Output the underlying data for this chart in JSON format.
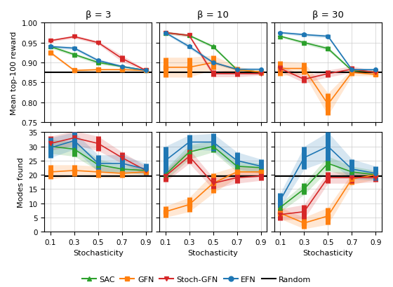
{
  "x": [
    0.1,
    0.3,
    0.5,
    0.7,
    0.9
  ],
  "beta_labels": [
    "β = 3",
    "β = 10",
    "β = 30"
  ],
  "reward": {
    "SAC": [
      [
        0.94,
        0.92,
        0.9,
        0.89,
        0.88
      ],
      [
        0.975,
        0.968,
        0.94,
        0.882,
        0.876
      ],
      [
        0.966,
        0.95,
        0.935,
        0.88,
        0.876
      ]
    ],
    "GFN": [
      [
        0.925,
        0.88,
        0.882,
        0.882,
        0.88
      ],
      [
        0.888,
        0.888,
        0.9,
        0.882,
        0.876
      ],
      [
        0.885,
        0.885,
        0.795,
        0.875,
        0.87
      ]
    ],
    "StochGFN": [
      [
        0.955,
        0.965,
        0.95,
        0.91,
        0.88
      ],
      [
        0.975,
        0.968,
        0.872,
        0.872,
        0.872
      ],
      [
        0.885,
        0.858,
        0.872,
        0.883,
        0.875
      ]
    ],
    "EFN": [
      [
        0.94,
        0.936,
        0.905,
        0.89,
        0.88
      ],
      [
        0.975,
        0.94,
        0.9,
        0.883,
        0.883
      ],
      [
        0.975,
        0.97,
        0.966,
        0.882,
        0.882
      ]
    ],
    "Random": 0.875
  },
  "reward_err": {
    "SAC": [
      [
        0.004,
        0.004,
        0.004,
        0.003,
        0.002
      ],
      [
        0.003,
        0.003,
        0.004,
        0.003,
        0.002
      ],
      [
        0.003,
        0.004,
        0.005,
        0.003,
        0.002
      ]
    ],
    "GFN": [
      [
        0.004,
        0.003,
        0.003,
        0.003,
        0.002
      ],
      [
        0.025,
        0.025,
        0.018,
        0.008,
        0.004
      ],
      [
        0.018,
        0.015,
        0.028,
        0.008,
        0.004
      ]
    ],
    "StochGFN": [
      [
        0.003,
        0.004,
        0.004,
        0.008,
        0.002
      ],
      [
        0.003,
        0.004,
        0.008,
        0.008,
        0.004
      ],
      [
        0.008,
        0.009,
        0.009,
        0.008,
        0.004
      ]
    ],
    "EFN": [
      [
        0.004,
        0.004,
        0.004,
        0.003,
        0.002
      ],
      [
        0.003,
        0.005,
        0.004,
        0.003,
        0.002
      ],
      [
        0.003,
        0.004,
        0.004,
        0.003,
        0.002
      ]
    ]
  },
  "modes": {
    "SAC": [
      [
        30.0,
        29.0,
        23.5,
        22.0,
        21.5
      ],
      [
        20.0,
        28.0,
        30.0,
        23.0,
        22.5
      ],
      [
        8.5,
        15.0,
        24.0,
        21.0,
        20.0
      ]
    ],
    "GFN": [
      [
        21.0,
        21.5,
        21.0,
        20.5,
        21.0
      ],
      [
        7.0,
        9.5,
        17.0,
        21.0,
        21.0
      ],
      [
        6.5,
        3.0,
        5.5,
        18.5,
        20.0
      ]
    ],
    "StochGFN": [
      [
        31.0,
        33.0,
        31.0,
        26.0,
        21.5
      ],
      [
        19.5,
        26.5,
        17.0,
        19.0,
        19.5
      ],
      [
        6.0,
        7.0,
        19.0,
        19.0,
        19.0
      ]
    ],
    "EFN": [
      [
        29.5,
        32.0,
        24.0,
        24.0,
        22.0
      ],
      [
        25.0,
        31.5,
        31.5,
        25.0,
        23.0
      ],
      [
        11.0,
        26.0,
        30.0,
        22.0,
        20.5
      ]
    ],
    "Random": 19.5
  },
  "modes_err": {
    "SAC": [
      [
        2.5,
        2.5,
        2.0,
        1.5,
        1.0
      ],
      [
        2.0,
        2.5,
        2.0,
        2.0,
        1.5
      ],
      [
        1.5,
        2.0,
        2.5,
        2.0,
        1.5
      ]
    ],
    "GFN": [
      [
        2.5,
        2.0,
        2.0,
        1.5,
        1.0
      ],
      [
        2.0,
        2.5,
        3.5,
        2.0,
        1.5
      ],
      [
        2.0,
        2.0,
        3.0,
        2.0,
        1.5
      ]
    ],
    "StochGFN": [
      [
        2.5,
        2.5,
        2.5,
        2.0,
        1.5
      ],
      [
        2.0,
        2.5,
        2.0,
        2.0,
        1.5
      ],
      [
        2.0,
        2.5,
        2.0,
        2.0,
        1.5
      ]
    ],
    "EFN": [
      [
        3.5,
        3.0,
        3.0,
        3.0,
        2.0
      ],
      [
        5.0,
        2.5,
        3.0,
        3.0,
        2.5
      ],
      [
        2.5,
        4.0,
        5.0,
        3.5,
        2.5
      ]
    ]
  },
  "colors": {
    "SAC": "#2ca02c",
    "GFN": "#ff7f0e",
    "StochGFN": "#d62728",
    "EFN": "#1f77b4",
    "Random": "#000000"
  },
  "markers": {
    "SAC": "^",
    "GFN": "s",
    "StochGFN": "v",
    "EFN": "o"
  },
  "reward_ylim": [
    0.75,
    1.0
  ],
  "reward_yticks": [
    0.75,
    0.8,
    0.85,
    0.9,
    0.95,
    1.0
  ],
  "modes_ylim": [
    0,
    35
  ],
  "modes_yticks": [
    0,
    5,
    10,
    15,
    20,
    25,
    30,
    35
  ],
  "xlabel": "Stochasticity",
  "ylabel_top": "Mean top-100 reward",
  "ylabel_bottom": "Modes found",
  "xticks": [
    0.1,
    0.3,
    0.5,
    0.7,
    0.9
  ],
  "xticklabels": [
    "0.1",
    "0.3",
    "0.5",
    "0.7",
    "0.9"
  ]
}
